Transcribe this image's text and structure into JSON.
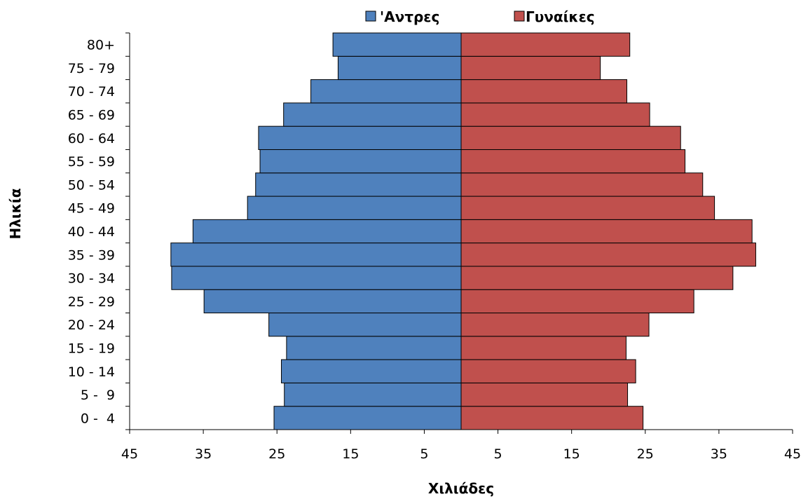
{
  "chart_data": {
    "type": "bar",
    "orientation": "horizontal",
    "title": "",
    "xlabel": "Χιλιάδες",
    "ylabel": "Ηλικία",
    "xlim": [
      -45,
      45
    ],
    "x_ticks": [
      "45",
      "35",
      "25",
      "15",
      "5",
      "5",
      "15",
      "25",
      "35",
      "45"
    ],
    "legend_position": "top",
    "grid": false,
    "categories": [
      "0 -  4",
      "5 -  9",
      "10 - 14",
      "15 - 19",
      "20 - 24",
      "25 - 29",
      "30 - 34",
      "35 - 39",
      "40 - 44",
      "45 - 49",
      "50 - 54",
      "55 - 59",
      "60 - 64",
      "65 - 69",
      "70 - 74",
      "75 - 79",
      "80+"
    ],
    "series": [
      {
        "name": "'Αντρες",
        "color": "#4f81bd",
        "values": [
          25.4,
          24.0,
          24.4,
          23.7,
          26.1,
          34.9,
          39.3,
          39.4,
          36.4,
          29.0,
          27.9,
          27.3,
          27.5,
          24.1,
          20.4,
          16.7,
          17.4
        ]
      },
      {
        "name": "Γυναίκες",
        "color": "#c0504d",
        "values": [
          24.7,
          22.6,
          23.7,
          22.4,
          25.5,
          31.6,
          36.9,
          40.0,
          39.5,
          34.4,
          32.8,
          30.4,
          29.8,
          25.6,
          22.5,
          18.9,
          22.9
        ]
      }
    ]
  }
}
